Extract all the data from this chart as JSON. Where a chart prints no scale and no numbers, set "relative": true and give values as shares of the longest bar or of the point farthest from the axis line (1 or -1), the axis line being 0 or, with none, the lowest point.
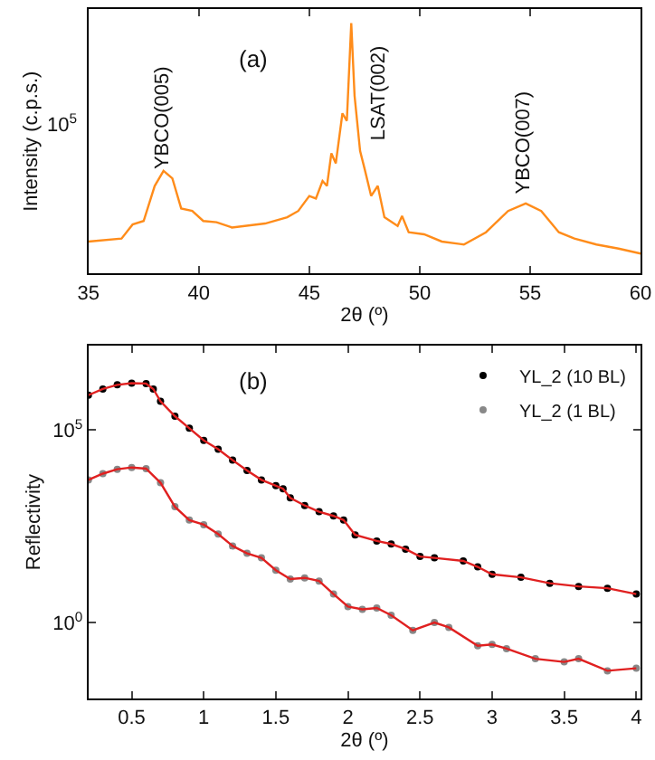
{
  "chart_data": [
    {
      "type": "line",
      "relative": true,
      "xlabel": "2θ (º)",
      "ylabel": "Intensity (c.p.s.)",
      "x": [
        35,
        36.5,
        37,
        37.5,
        38,
        38.4,
        38.8,
        39.2,
        39.7,
        40.2,
        40.8,
        41.5,
        43,
        44,
        44.5,
        45,
        45.3,
        45.6,
        45.8,
        46,
        46.2,
        46.5,
        46.7,
        46.9,
        47.05,
        47.3,
        47.5,
        47.8,
        48.1,
        48.4,
        49,
        49.2,
        49.5,
        50.2,
        51,
        52,
        53,
        54,
        54.8,
        55.5,
        56.3,
        57,
        58,
        59,
        60
      ],
      "series": [
        {
          "color": "#ff8c1a",
          "values": [
            0.128,
            0.14,
            0.196,
            0.21,
            0.35,
            0.41,
            0.38,
            0.26,
            0.25,
            0.21,
            0.205,
            0.184,
            0.2,
            0.225,
            0.25,
            0.31,
            0.3,
            0.37,
            0.35,
            0.48,
            0.44,
            0.64,
            0.61,
            1,
            0.71,
            0.49,
            0.42,
            0.31,
            0.35,
            0.225,
            0.19,
            0.23,
            0.165,
            0.157,
            0.128,
            0.116,
            0.165,
            0.25,
            0.28,
            0.25,
            0.165,
            0.14,
            0.116,
            0.1,
            0.08
          ]
        }
      ],
      "xlim": [
        35,
        60
      ],
      "xticks": [
        35,
        40,
        45,
        50,
        55,
        60
      ],
      "annotations": [
        "YBCO(005)",
        "LSAT(002)",
        "YBCO(007)",
        "(a)",
        "10$^{5}$"
      ]
    },
    {
      "type": "scatter",
      "log": "y",
      "xlabel": "2θ (º)",
      "ylabel": "Reflectivity",
      "marker": "circle",
      "legend": "top right",
      "xlim": [
        0.2,
        4.03
      ],
      "xticks": [
        0.5,
        1,
        1.5,
        2,
        2.5,
        3,
        3.5,
        4
      ],
      "ylim": [
        0.0107,
        15500000
      ],
      "yticks": [
        {
          "value": 1,
          "label": "10$^{0}$"
        },
        {
          "value": 100000,
          "label": "10$^{5}$"
        }
      ],
      "series": [
        {
          "name": "YL_2 (10 BL)",
          "color": "#000000",
          "x": [
            0.2,
            0.3,
            0.4,
            0.5,
            0.6,
            0.65,
            0.7,
            0.8,
            0.9,
            1,
            1.1,
            1.2,
            1.3,
            1.4,
            1.5,
            1.55,
            1.6,
            1.7,
            1.8,
            1.9,
            1.97,
            2.05,
            2.2,
            2.3,
            2.4,
            2.5,
            2.6,
            2.8,
            2.9,
            3,
            3.2,
            3.4,
            3.6,
            3.8,
            4
          ],
          "values": [
            810000,
            1170000,
            1500000,
            1660000,
            1620000,
            1170000,
            560000,
            230000,
            112000,
            54000,
            32000,
            16600,
            8900,
            5100,
            3600,
            3000,
            1740,
            1100,
            760,
            590,
            460,
            190,
            132,
            110,
            81,
            52,
            48,
            40,
            28,
            18,
            15,
            10.5,
            8.7,
            7.8,
            5.5
          ]
        },
        {
          "name": "YL_2 (1 BL)",
          "color": "#888888",
          "x": [
            0.2,
            0.3,
            0.4,
            0.5,
            0.6,
            0.7,
            0.8,
            0.9,
            1,
            1.1,
            1.2,
            1.3,
            1.4,
            1.5,
            1.6,
            1.7,
            1.8,
            1.9,
            2,
            2.1,
            2.2,
            2.3,
            2.45,
            2.6,
            2.7,
            2.9,
            3,
            3.1,
            3.3,
            3.5,
            3.6,
            3.8,
            4
          ],
          "values": [
            5100,
            7400,
            9600,
            10700,
            10000,
            4300,
            1020,
            460,
            350,
            200,
            98,
            63,
            48,
            23,
            13.5,
            14.5,
            12,
            5.5,
            2.6,
            2.2,
            2.4,
            1.55,
            0.63,
            1,
            0.75,
            0.25,
            0.27,
            0.21,
            0.115,
            0.095,
            0.115,
            0.056,
            0.065
          ]
        },
        {
          "type": "line",
          "marker": "none",
          "color": "#e02020",
          "x": [
            0.2,
            0.3,
            0.4,
            0.5,
            0.6,
            0.65,
            0.7,
            0.8,
            0.9,
            1,
            1.1,
            1.2,
            1.3,
            1.4,
            1.5,
            1.55,
            1.6,
            1.7,
            1.8,
            1.9,
            1.97,
            2.05,
            2.2,
            2.3,
            2.4,
            2.5,
            2.6,
            2.8,
            2.9,
            3,
            3.2,
            3.4,
            3.6,
            3.8,
            4
          ],
          "values": [
            810000,
            1170000,
            1500000,
            1660000,
            1620000,
            1170000,
            560000,
            230000,
            112000,
            54000,
            32000,
            16600,
            8900,
            5100,
            3600,
            3000,
            1740,
            1100,
            760,
            590,
            460,
            190,
            132,
            110,
            81,
            52,
            48,
            40,
            28,
            18,
            15,
            10.5,
            8.7,
            7.8,
            5.5
          ]
        },
        {
          "type": "line",
          "marker": "none",
          "color": "#e02020",
          "x": [
            0.2,
            0.3,
            0.4,
            0.5,
            0.6,
            0.7,
            0.8,
            0.9,
            1,
            1.1,
            1.2,
            1.3,
            1.4,
            1.5,
            1.6,
            1.7,
            1.8,
            1.9,
            2,
            2.1,
            2.2,
            2.3,
            2.45,
            2.6,
            2.7,
            2.9,
            3,
            3.1,
            3.3,
            3.5,
            3.6,
            3.8,
            4
          ],
          "values": [
            5100,
            7400,
            9600,
            10700,
            10000,
            4300,
            1020,
            460,
            350,
            200,
            98,
            63,
            48,
            23,
            13.5,
            14.5,
            12,
            5.5,
            2.6,
            2.2,
            2.4,
            1.55,
            0.63,
            1,
            0.75,
            0.25,
            0.27,
            0.21,
            0.115,
            0.095,
            0.115,
            0.056,
            0.065
          ]
        }
      ],
      "annotations": [
        "(b)"
      ]
    }
  ]
}
